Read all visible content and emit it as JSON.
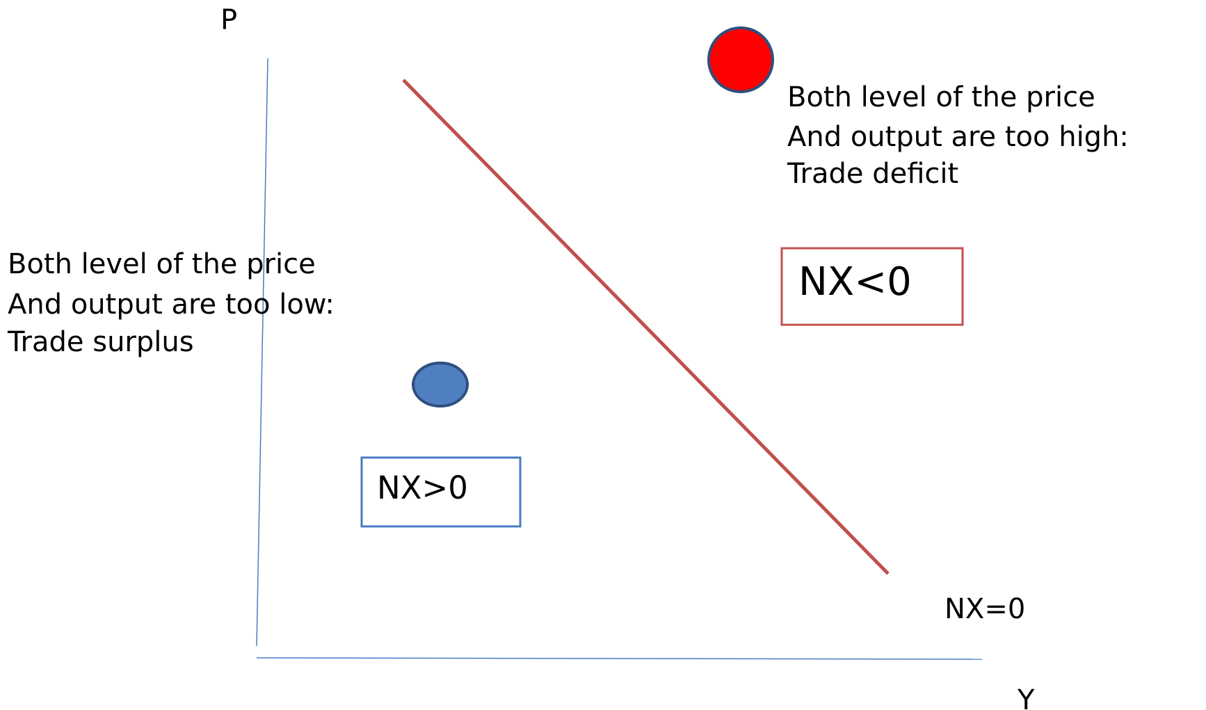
{
  "axes": {
    "y_label": "P",
    "x_label": "Y"
  },
  "curve": {
    "label": "NX=0"
  },
  "upper_note": {
    "lines": [
      "Both level of the price",
      "And output are too high:",
      "Trade deficit"
    ]
  },
  "lower_note": {
    "lines": [
      "Both level of the price",
      "And output are too low:",
      "Trade surplus"
    ]
  },
  "boxes": [
    {
      "label": "NX<0"
    },
    {
      "label": "NX>0"
    }
  ]
}
